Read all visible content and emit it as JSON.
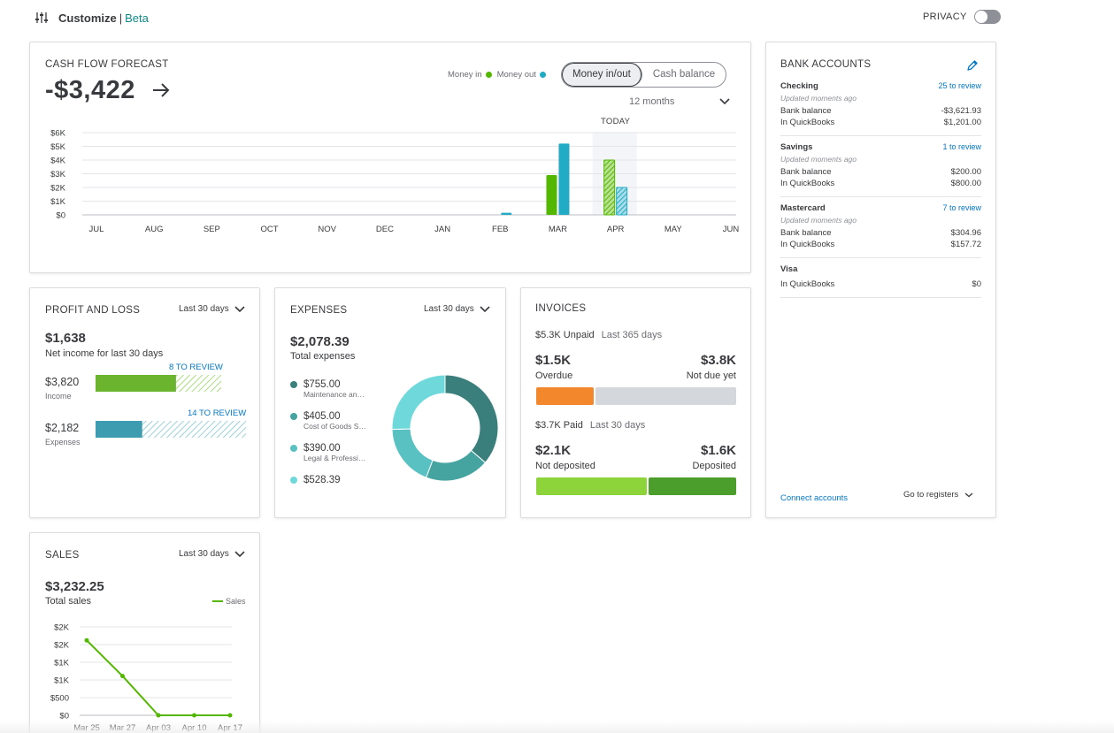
{
  "header": {
    "customize_label": "Customize",
    "separator": "|",
    "beta_label": "Beta",
    "privacy_label": "PRIVACY",
    "privacy_on": false
  },
  "cash_flow": {
    "title": "CASH FLOW FORECAST",
    "amount": "-$3,422",
    "legend_in": "Money in",
    "legend_out": "Money out",
    "toggle_options": [
      "Money in/out",
      "Cash balance"
    ],
    "range": "12 months",
    "today_label": "TODAY"
  },
  "bank_accounts": {
    "title": "BANK ACCOUNTS",
    "accounts": [
      {
        "name": "Checking",
        "review": "25 to review",
        "updated": "Updated moments ago",
        "bank_label": "Bank balance",
        "bank_value": "-$3,621.93",
        "qb_label": "In QuickBooks",
        "qb_value": "$1,201.00"
      },
      {
        "name": "Savings",
        "review": "1 to review",
        "updated": "Updated moments ago",
        "bank_label": "Bank balance",
        "bank_value": "$200.00",
        "qb_label": "In QuickBooks",
        "qb_value": "$800.00"
      },
      {
        "name": "Mastercard",
        "review": "7 to review",
        "updated": "Updated moments ago",
        "bank_label": "Bank balance",
        "bank_value": "$304.96",
        "qb_label": "In QuickBooks",
        "qb_value": "$157.72"
      },
      {
        "name": "Visa",
        "qb_label": "In QuickBooks",
        "qb_value": "$0"
      }
    ],
    "connect_label": "Connect accounts",
    "goto_label": "Go to registers"
  },
  "profit_loss": {
    "title": "PROFIT AND LOSS",
    "period": "Last 30 days",
    "amount": "$1,638",
    "caption": "Net income for last 30 days",
    "income_review": "8 TO REVIEW",
    "income_value": "$3,820",
    "income_label": "Income",
    "income_fraction": 0.64,
    "expenses_review": "14 TO REVIEW",
    "expenses_value": "$2,182",
    "expenses_label": "Expenses",
    "expenses_fraction": 0.31
  },
  "expenses": {
    "title": "EXPENSES",
    "period": "Last 30 days",
    "amount": "$2,078.39",
    "caption": "Total expenses",
    "items": [
      {
        "amount": "$755.00",
        "category": "Maintenance an…",
        "color": "#3a7f7b"
      },
      {
        "amount": "$405.00",
        "category": "Cost of Goods S…",
        "color": "#45a3a0"
      },
      {
        "amount": "$390.00",
        "category": "Legal & Professi…",
        "color": "#5ac1c2"
      },
      {
        "amount": "$528.39",
        "category": "",
        "color": "#6fd8db"
      }
    ]
  },
  "invoices": {
    "title": "INVOICES",
    "unpaid_label": "$5.3K Unpaid",
    "unpaid_period": "Last 365 days",
    "overdue_value": "$1.5K",
    "overdue_label": "Overdue",
    "notdue_value": "$3.8K",
    "notdue_label": "Not due yet",
    "paid_label": "$3.7K Paid",
    "paid_period": "Last 30 days",
    "notdeposited_value": "$2.1K",
    "notdeposited_label": "Not deposited",
    "deposited_value": "$1.6K",
    "deposited_label": "Deposited"
  },
  "sales": {
    "title": "SALES",
    "period": "Last 30 days",
    "amount": "$3,232.25",
    "caption": "Total sales",
    "legend": "Sales"
  },
  "chart_data": [
    {
      "type": "bar",
      "title": "CASH FLOW FORECAST",
      "categories": [
        "JUL",
        "AUG",
        "SEP",
        "OCT",
        "NOV",
        "DEC",
        "JAN",
        "FEB",
        "MAR",
        "APR",
        "MAY",
        "JUN"
      ],
      "y_ticks": [
        "$0",
        "$1K",
        "$2K",
        "$3K",
        "$4K",
        "$5K",
        "$6K"
      ],
      "ylim": [
        0,
        6000
      ],
      "series": [
        {
          "name": "Money in",
          "color": "#53b700",
          "values": [
            0,
            0,
            0,
            0,
            0,
            0,
            0,
            0,
            2900,
            4000,
            0,
            0
          ]
        },
        {
          "name": "Money out",
          "color": "#21abc5",
          "values": [
            0,
            0,
            0,
            0,
            0,
            0,
            0,
            150,
            5200,
            2000,
            0,
            0
          ]
        }
      ],
      "forecast_from": "APR",
      "grid": true
    },
    {
      "type": "donut",
      "title": "EXPENSES",
      "values": [
        755.0,
        405.0,
        390.0,
        528.39
      ],
      "colors": [
        "#3a7f7b",
        "#45a3a0",
        "#5ac1c2",
        "#6fd8db"
      ]
    },
    {
      "type": "line",
      "title": "SALES",
      "x": [
        "Mar 25",
        "Mar 27",
        "Apr 03",
        "Apr 10",
        "Apr 17"
      ],
      "y_ticks": [
        "$0",
        "$500",
        "$1K",
        "$1K",
        "$2K",
        "$2K"
      ],
      "ylim": [
        0,
        2500
      ],
      "series": [
        {
          "name": "Sales",
          "color": "#53b700",
          "values": [
            2120,
            1110,
            0,
            0,
            0
          ]
        }
      ],
      "grid": true
    }
  ]
}
